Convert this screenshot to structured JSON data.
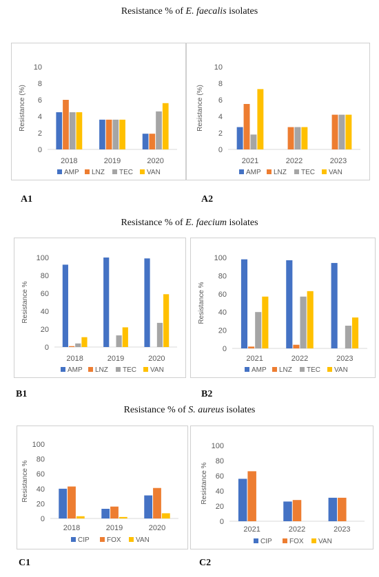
{
  "sections": [
    {
      "title_prefix": "Resistance % of ",
      "title_species": "E. faecalis",
      "title_suffix": " isolates"
    },
    {
      "title_prefix": "Resistance % of ",
      "title_species": "E. faecium",
      "title_suffix": " isolates"
    },
    {
      "title_prefix": "Resistance % of ",
      "title_species": "S. aureus",
      "title_suffix": " isolates"
    }
  ],
  "colors": {
    "AMP": "#4472c4",
    "LNZ": "#ed7d31",
    "TEC": "#a5a5a5",
    "VAN": "#ffc000",
    "CIP": "#4472c4",
    "FOX": "#ed7d31"
  },
  "chart_data": [
    {
      "id": "A1",
      "label": "A1",
      "type": "bar",
      "ylabel": "Resistance (%)",
      "ylim": [
        0,
        10
      ],
      "yticks": [
        0,
        2,
        4,
        6,
        8,
        10
      ],
      "categories": [
        "2018",
        "2019",
        "2020"
      ],
      "grid": false,
      "legend": "bottom",
      "series": [
        {
          "name": "AMP",
          "values": [
            4.5,
            3.6,
            1.9
          ]
        },
        {
          "name": "LNZ",
          "values": [
            6.0,
            3.6,
            1.9
          ]
        },
        {
          "name": "TEC",
          "values": [
            4.5,
            3.6,
            4.6
          ]
        },
        {
          "name": "VAN",
          "values": [
            4.5,
            3.6,
            5.6
          ]
        }
      ]
    },
    {
      "id": "A2",
      "label": "A2",
      "type": "bar",
      "ylabel": "Resistance (%)",
      "ylim": [
        0,
        10
      ],
      "yticks": [
        0,
        2,
        4,
        6,
        8,
        10
      ],
      "categories": [
        "2021",
        "2022",
        "2023"
      ],
      "grid": false,
      "legend": "bottom",
      "series": [
        {
          "name": "AMP",
          "values": [
            2.7,
            0,
            0
          ]
        },
        {
          "name": "LNZ",
          "values": [
            5.5,
            2.7,
            4.2
          ]
        },
        {
          "name": "TEC",
          "values": [
            1.8,
            2.7,
            4.2
          ]
        },
        {
          "name": "VAN",
          "values": [
            7.3,
            2.7,
            4.2
          ]
        }
      ]
    },
    {
      "id": "B1",
      "label": "B1",
      "type": "bar",
      "ylabel": "Resistance %",
      "ylim": [
        0,
        100
      ],
      "yticks": [
        0,
        20,
        40,
        60,
        80,
        100
      ],
      "categories": [
        "2018",
        "2019",
        "2020"
      ],
      "grid": false,
      "legend": "bottom",
      "series": [
        {
          "name": "AMP",
          "values": [
            92,
            100,
            99
          ]
        },
        {
          "name": "LNZ",
          "values": [
            1,
            0,
            0
          ]
        },
        {
          "name": "TEC",
          "values": [
            4,
            13,
            27
          ]
        },
        {
          "name": "VAN",
          "values": [
            11,
            22,
            59
          ]
        }
      ]
    },
    {
      "id": "B2",
      "label": "B2",
      "type": "bar",
      "ylabel": "Resistance %",
      "ylim": [
        0,
        100
      ],
      "yticks": [
        0,
        20,
        40,
        60,
        80,
        100
      ],
      "categories": [
        "2021",
        "2022",
        "2023"
      ],
      "grid": false,
      "legend": "bottom",
      "series": [
        {
          "name": "AMP",
          "values": [
            98,
            97,
            94
          ]
        },
        {
          "name": "LNZ",
          "values": [
            2,
            4,
            0
          ]
        },
        {
          "name": "TEC",
          "values": [
            40,
            57,
            25
          ]
        },
        {
          "name": "VAN",
          "values": [
            57,
            63,
            34
          ]
        }
      ]
    },
    {
      "id": "C1",
      "label": "C1",
      "type": "bar",
      "ylabel": "Resistance %",
      "ylim": [
        0,
        100
      ],
      "yticks": [
        0,
        20,
        40,
        60,
        80,
        100
      ],
      "categories": [
        "2018",
        "2019",
        "2020"
      ],
      "grid": false,
      "legend": "bottom",
      "series": [
        {
          "name": "CIP",
          "values": [
            40,
            13,
            31
          ]
        },
        {
          "name": "FOX",
          "values": [
            43,
            16,
            41
          ]
        },
        {
          "name": "VAN",
          "values": [
            3,
            2,
            7
          ]
        }
      ]
    },
    {
      "id": "C2",
      "label": "C2",
      "type": "bar",
      "ylabel": "Resistance %",
      "ylim": [
        0,
        100
      ],
      "yticks": [
        0,
        20,
        40,
        60,
        80,
        100
      ],
      "categories": [
        "2021",
        "2022",
        "2023"
      ],
      "grid": false,
      "legend": "bottom",
      "series": [
        {
          "name": "CIP",
          "values": [
            56,
            26,
            31
          ]
        },
        {
          "name": "FOX",
          "values": [
            66,
            28,
            31
          ]
        },
        {
          "name": "VAN",
          "values": [
            0,
            0,
            0
          ]
        }
      ]
    }
  ]
}
